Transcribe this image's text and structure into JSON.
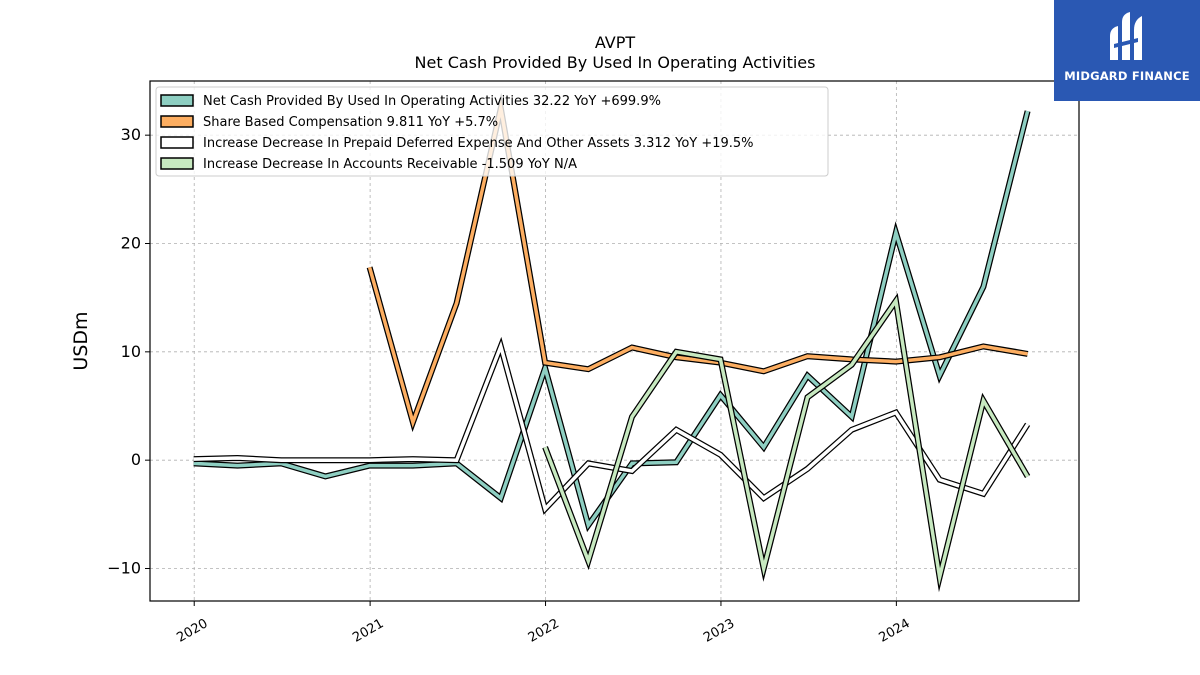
{
  "logo": {
    "text": "MIDGARD FINANCE",
    "icon": "midgard-logo-icon",
    "background": "#2a58b3"
  },
  "chart_data": {
    "type": "line",
    "title": "AVPT",
    "subtitle": "Net Cash Provided By Used In Operating Activities",
    "xlabel": "",
    "ylabel": "USDm",
    "x_ticks": [
      "2020",
      "2021",
      "2022",
      "2023",
      "2024"
    ],
    "y_ticks": [
      -10,
      0,
      10,
      20,
      30
    ],
    "xlim": [
      "2019-10-01",
      "2025-01-15"
    ],
    "ylim": [
      -13,
      35
    ],
    "grid": true,
    "legend_position": "top-left",
    "series": [
      {
        "name": "Net Cash Provided By Used In Operating Activities",
        "legend": "Net Cash Provided By Used In Operating Activities  32.22 YoY +699.9%",
        "color": "#8ecfc2",
        "x": [
          "2019-12-31",
          "2020-03-31",
          "2020-06-30",
          "2020-09-30",
          "2020-12-31",
          "2021-03-31",
          "2021-06-30",
          "2021-09-30",
          "2021-12-31",
          "2022-03-31",
          "2022-06-30",
          "2022-09-30",
          "2022-12-31",
          "2023-03-31",
          "2023-06-30",
          "2023-09-30",
          "2023-12-31",
          "2024-03-31",
          "2024-06-30",
          "2024-09-30"
        ],
        "values": [
          -0.3,
          -0.5,
          -0.3,
          -1.5,
          -0.5,
          -0.5,
          -0.3,
          -3.5,
          8.5,
          -6.0,
          -0.3,
          -0.2,
          6.0,
          1.2,
          7.8,
          4.0,
          21.0,
          7.8,
          16.0,
          32.22
        ]
      },
      {
        "name": "Share Based Compensation",
        "legend": "Share Based Compensation  9.811 YoY +5.7%",
        "color": "#fdae61",
        "x": [
          "2020-12-31",
          "2021-03-31",
          "2021-06-30",
          "2021-09-30",
          "2021-12-31",
          "2022-03-31",
          "2022-06-30",
          "2022-09-30",
          "2022-12-31",
          "2023-03-31",
          "2023-06-30",
          "2023-09-30",
          "2023-12-31",
          "2024-03-31",
          "2024-06-30",
          "2024-09-30"
        ],
        "values": [
          17.8,
          3.5,
          14.5,
          32.5,
          9.0,
          8.4,
          10.4,
          9.5,
          9.0,
          8.2,
          9.6,
          9.3,
          9.1,
          9.5,
          10.5,
          9.811
        ]
      },
      {
        "name": "Increase Decrease In Prepaid Deferred Expense And Other Assets",
        "legend": "Increase Decrease In Prepaid Deferred Expense And Other Assets  3.312 YoY +19.5%",
        "color": "#ffffff",
        "x": [
          "2019-12-31",
          "2020-03-31",
          "2020-06-30",
          "2020-09-30",
          "2020-12-31",
          "2021-03-31",
          "2021-06-30",
          "2021-09-30",
          "2021-12-31",
          "2022-03-31",
          "2022-06-30",
          "2022-09-30",
          "2022-12-31",
          "2023-03-31",
          "2023-06-30",
          "2023-09-30",
          "2023-12-31",
          "2024-03-31",
          "2024-06-30",
          "2024-09-30"
        ],
        "values": [
          0.1,
          0.2,
          0.0,
          0.0,
          0.0,
          0.1,
          0.0,
          10.5,
          -4.5,
          -0.3,
          -1.0,
          2.8,
          0.5,
          -3.5,
          -0.8,
          2.8,
          4.4,
          -1.8,
          -3.1,
          3.312
        ]
      },
      {
        "name": "Increase Decrease In Accounts Receivable",
        "legend": "Increase Decrease In Accounts Receivable  -1.509 YoY N/A",
        "color": "#c7e9c0",
        "x": [
          "2021-12-31",
          "2022-03-31",
          "2022-06-30",
          "2022-09-30",
          "2022-12-31",
          "2023-03-31",
          "2023-06-30",
          "2023-09-30",
          "2023-12-31",
          "2024-03-31",
          "2024-06-30",
          "2024-09-30"
        ],
        "values": [
          1.2,
          -9.3,
          4.0,
          10.0,
          9.3,
          -10.0,
          5.8,
          8.8,
          14.7,
          -10.8,
          5.5,
          -1.509
        ]
      }
    ]
  }
}
